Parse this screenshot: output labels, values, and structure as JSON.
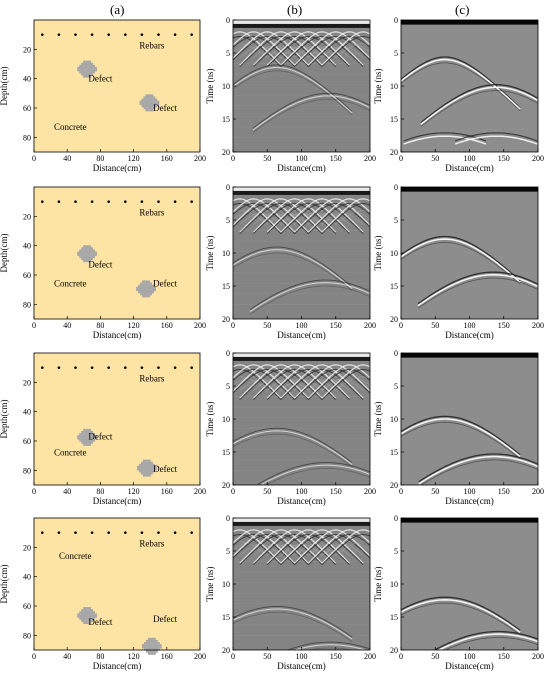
{
  "column_labels": [
    "(a)",
    "(b)",
    "(c)"
  ],
  "model_panel": {
    "xlabel": "Distance(cm)",
    "ylabel": "Depth(cm)",
    "xticks": [
      0,
      40,
      80,
      120,
      160,
      200
    ],
    "yticks": [
      20,
      40,
      60,
      80
    ],
    "xlim": [
      0,
      200
    ],
    "ylim": [
      0,
      90
    ],
    "rebar_x": [
      10,
      30,
      50,
      70,
      90,
      110,
      130,
      150,
      170,
      190
    ],
    "rebar_depth": 10,
    "label_rebars": "Rebars",
    "label_defect": "Defect",
    "label_concrete": "Concrete",
    "background_color": "#fde4a4",
    "defect_color": "#a8a8a8"
  },
  "radargram_panel": {
    "xlabel": "Distance(cm)",
    "ylabel": "Time (ns)",
    "xticks": [
      0,
      50,
      100,
      150,
      200
    ],
    "yticks": [
      0,
      5,
      10,
      15,
      20
    ],
    "xlim": [
      0,
      200
    ],
    "ylim": [
      0,
      20
    ]
  },
  "rows": [
    {
      "defects": [
        {
          "x": 64,
          "depth": 32,
          "time_b": 7.2,
          "time_c": 6.0
        },
        {
          "x": 139,
          "depth": 55,
          "time_b": 11.5,
          "time_c": 10.2
        }
      ],
      "concrete_pos": [
        22,
        75
      ],
      "defect_label_pos": [
        [
          80,
          42
        ],
        [
          158,
          62
        ]
      ],
      "second_pair_c": 17.6
    },
    {
      "defects": [
        {
          "x": 64,
          "depth": 44,
          "time_b": 9.5,
          "time_c": 7.9
        },
        {
          "x": 135,
          "depth": 68,
          "time_b": 14.5,
          "time_c": 13.3
        }
      ],
      "concrete_pos": [
        22,
        68
      ],
      "defect_label_pos": [
        [
          80,
          55
        ],
        [
          158,
          68
        ]
      ],
      "second_pair_c": null
    },
    {
      "defects": [
        {
          "x": 64,
          "depth": 56,
          "time_b": 11.8,
          "time_c": 10.0
        },
        {
          "x": 136,
          "depth": 77,
          "time_b": 17.0,
          "time_c": 15.7
        }
      ],
      "concrete_pos": [
        22,
        70
      ],
      "defect_label_pos": [
        [
          80,
          59
        ],
        [
          158,
          81
        ]
      ],
      "second_pair_c": null
    },
    {
      "defects": [
        {
          "x": 64,
          "depth": 65,
          "time_b": 13.8,
          "time_c": 12.4
        },
        {
          "x": 142,
          "depth": 86,
          "time_b": 19.2,
          "time_c": 17.6
        }
      ],
      "concrete_pos": [
        28,
        28
      ],
      "defect_label_pos": [
        [
          80,
          73
        ],
        [
          158,
          71
        ]
      ],
      "second_pair_c": null
    }
  ]
}
